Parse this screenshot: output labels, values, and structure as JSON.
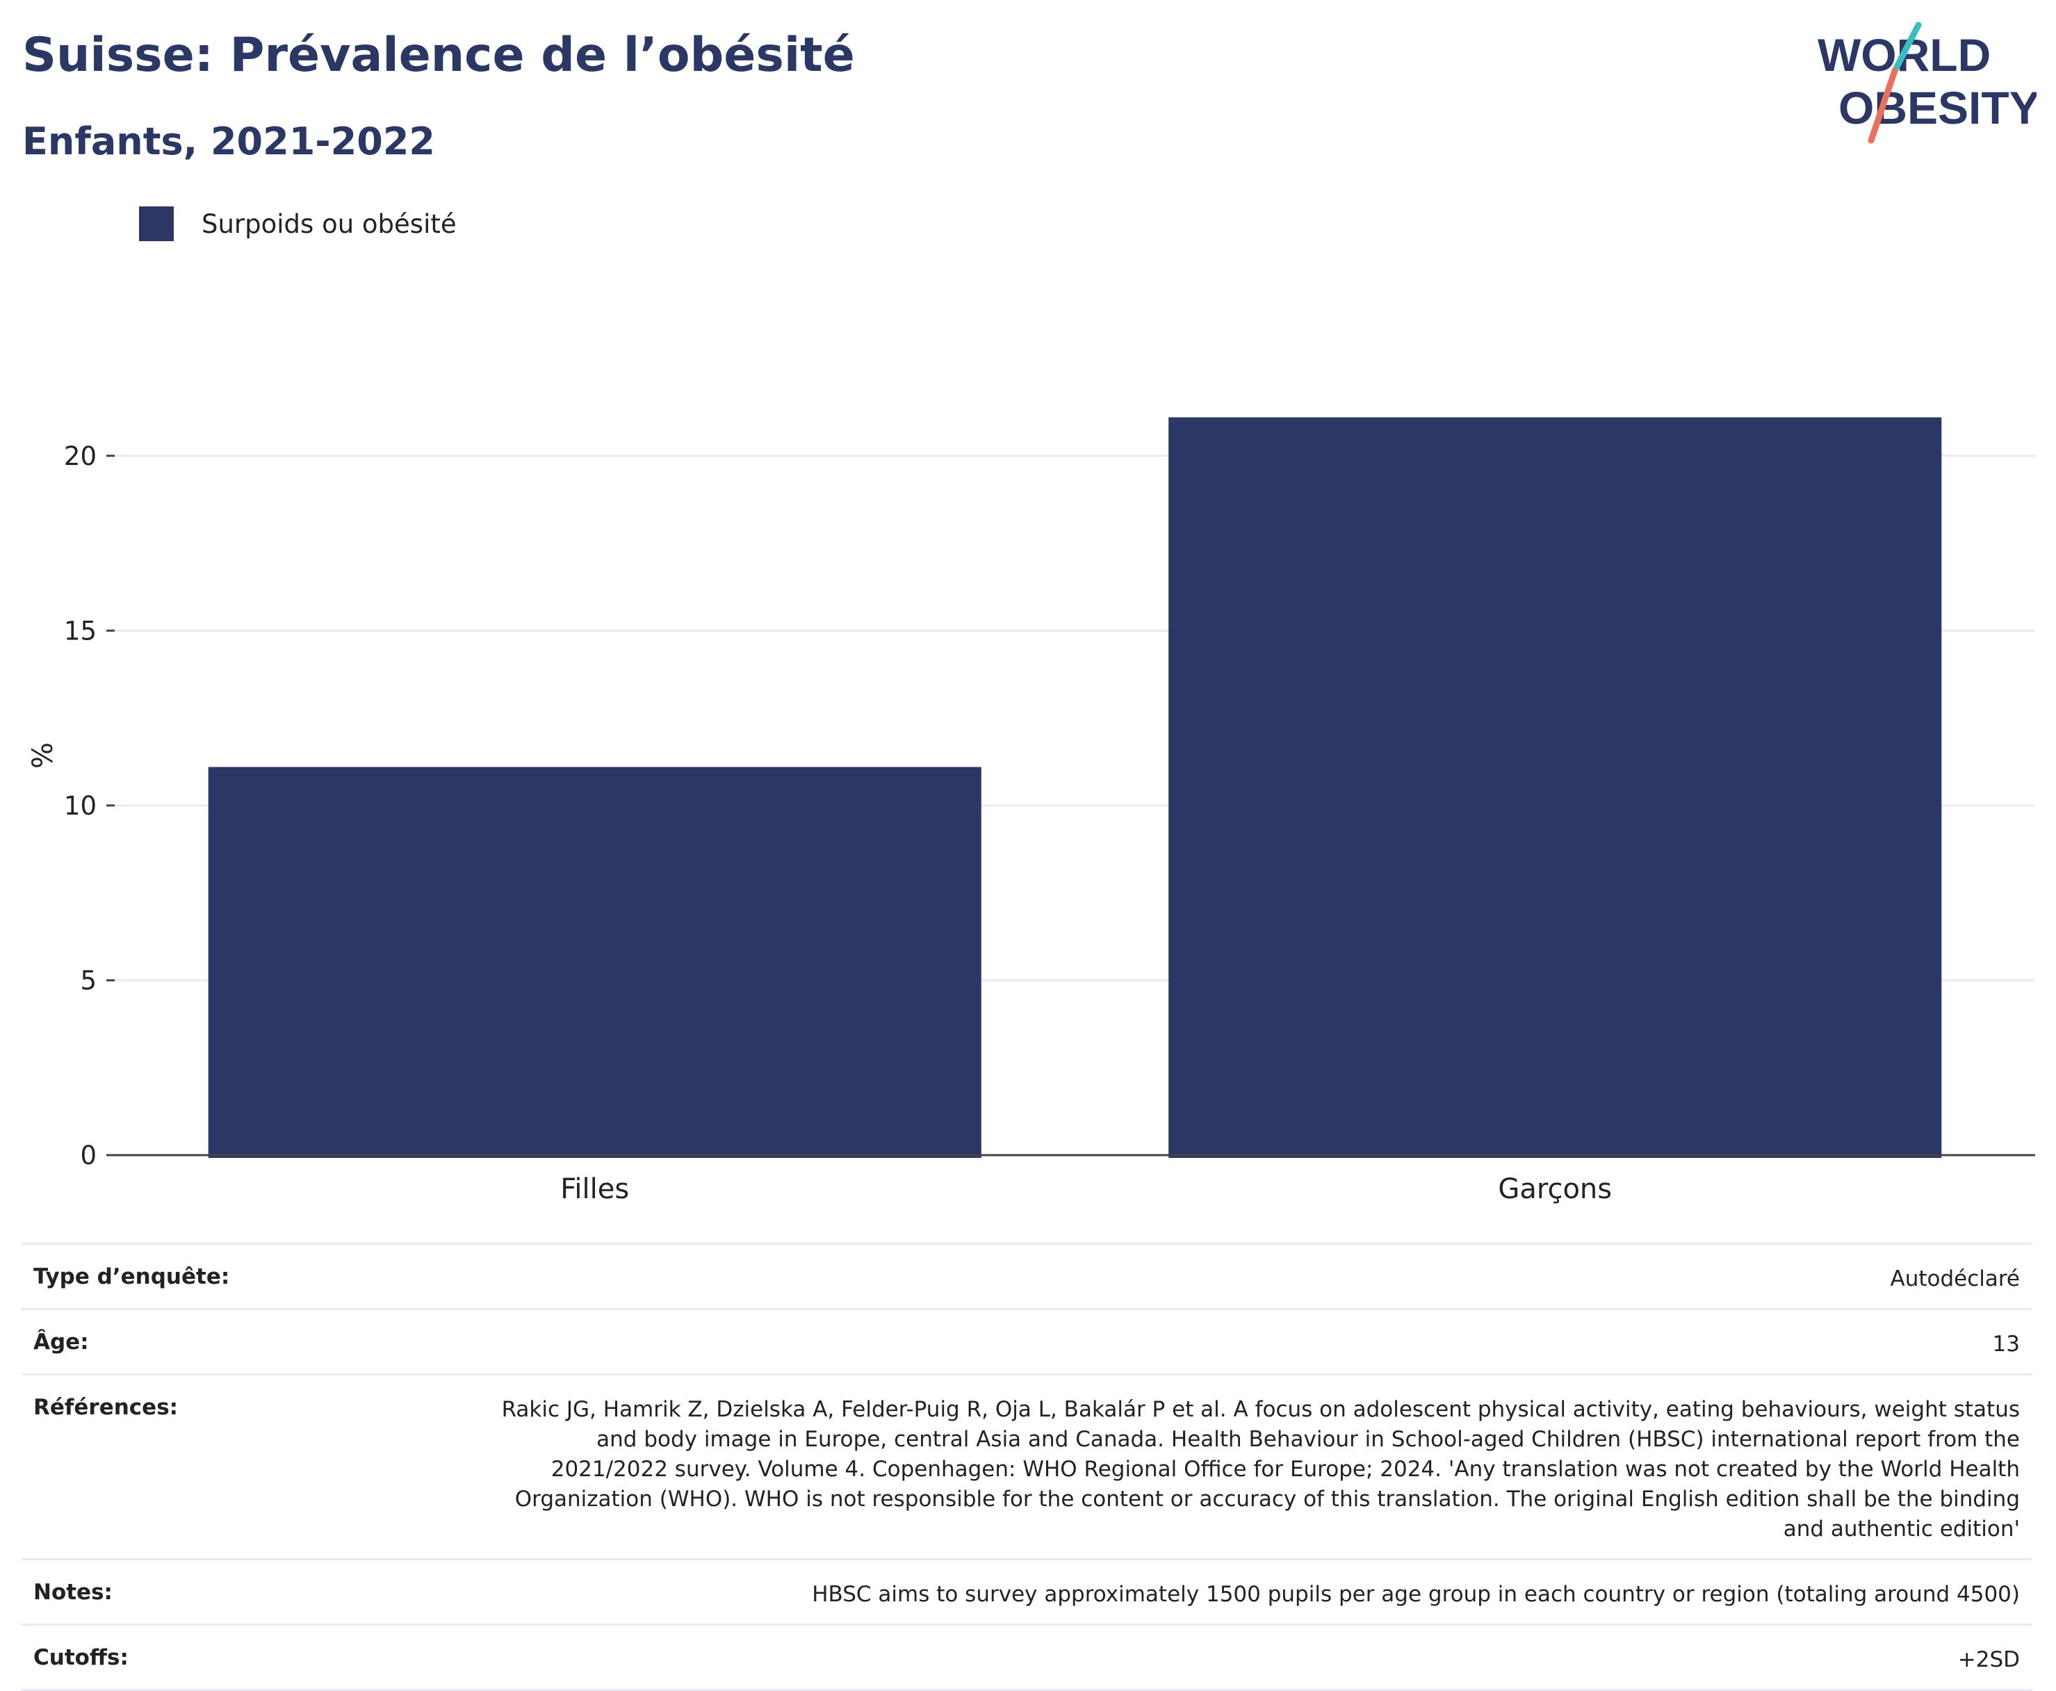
{
  "header": {
    "title": "Suisse: Prévalence de l’obésité",
    "subtitle": "Enfants, 2021-2022",
    "logo_line1": "WORLD",
    "logo_line2": "OBESITY"
  },
  "legend": {
    "label": "Surpoids ou obésité"
  },
  "chart_data": {
    "type": "bar",
    "categories": [
      "Filles",
      "Garçons"
    ],
    "series": [
      {
        "name": "Surpoids ou obésité",
        "values": [
          11.1,
          21.1
        ],
        "color": "#2b3764"
      }
    ],
    "ylabel": "%",
    "ylim": [
      0,
      22.5
    ],
    "yticks": [
      0,
      5,
      10,
      15,
      20
    ],
    "grid": true
  },
  "meta": [
    {
      "key": "Type d’enquête:",
      "value": "Autodéclaré"
    },
    {
      "key": "Âge:",
      "value": "13"
    },
    {
      "key": "Références:",
      "value": "Rakic JG, Hamrik Z, Dzielska A, Felder-Puig R, Oja L, Bakalár P et al. A focus on adolescent physical activity, eating behaviours, weight status and body image in Europe, central Asia and Canada. Health Behaviour in School-aged Children (HBSC) international report from the 2021/2022 survey. Volume 4. Copenhagen: WHO Regional Office for Europe; 2024. 'Any translation was not created by the World Health Organization (WHO). WHO is not responsible for the content or accuracy of this translation. The original English edition shall be the binding and authentic edition'"
    },
    {
      "key": "Notes:",
      "value": "HBSC aims to survey approximately 1500 pupils per age group in each country or region (totaling around 4500)"
    },
    {
      "key": "Cutoffs:",
      "value": "+2SD"
    }
  ]
}
